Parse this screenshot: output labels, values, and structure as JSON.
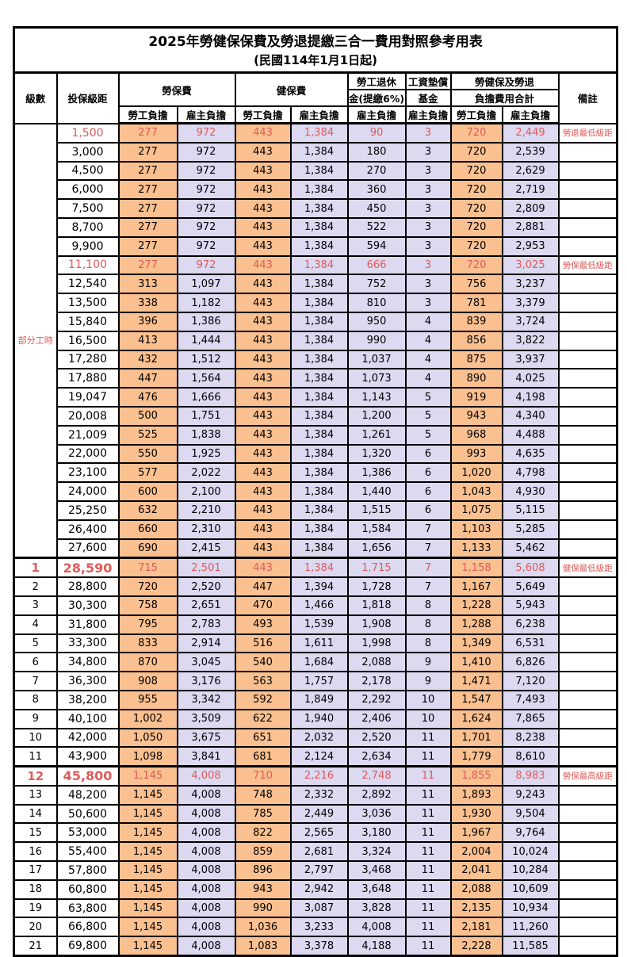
{
  "title": "2025年勞健保保費及勞退提繳三合一費用對照參考用表",
  "subtitle": "(民國114年1月1日起)",
  "colors": {
    "employee_bg": "#FAC090",
    "employer_bg": "#DCD9F1",
    "highlight_red": "#E05A5A"
  },
  "header": {
    "level": "級數",
    "bracket": "投保級距",
    "labor_ins": "勞保費",
    "health_ins": "健保費",
    "pension_line1": "勞工退休",
    "pension_line2": "金(提繳6%)",
    "wage_fund_line1": "工資墊償",
    "wage_fund_line2": "基金",
    "total_line1": "勞健保及勞退",
    "total_line2": "負擔費用合計",
    "remark": "備註",
    "employee": "勞工負擔",
    "employer": "雇主負擔"
  },
  "part_time_label": "部分工時",
  "rows": [
    {
      "level": "",
      "bracket": "1,500",
      "v": [
        "277",
        "972",
        "443",
        "1,384",
        "90",
        "3",
        "720",
        "2,449"
      ],
      "remark": "勞退最低級距",
      "red": true,
      "key": false
    },
    {
      "level": "",
      "bracket": "3,000",
      "v": [
        "277",
        "972",
        "443",
        "1,384",
        "180",
        "3",
        "720",
        "2,539"
      ],
      "remark": "",
      "red": false,
      "key": false
    },
    {
      "level": "",
      "bracket": "4,500",
      "v": [
        "277",
        "972",
        "443",
        "1,384",
        "270",
        "3",
        "720",
        "2,629"
      ],
      "remark": "",
      "red": false,
      "key": false
    },
    {
      "level": "",
      "bracket": "6,000",
      "v": [
        "277",
        "972",
        "443",
        "1,384",
        "360",
        "3",
        "720",
        "2,719"
      ],
      "remark": "",
      "red": false,
      "key": false
    },
    {
      "level": "",
      "bracket": "7,500",
      "v": [
        "277",
        "972",
        "443",
        "1,384",
        "450",
        "3",
        "720",
        "2,809"
      ],
      "remark": "",
      "red": false,
      "key": false
    },
    {
      "level": "",
      "bracket": "8,700",
      "v": [
        "277",
        "972",
        "443",
        "1,384",
        "522",
        "3",
        "720",
        "2,881"
      ],
      "remark": "",
      "red": false,
      "key": false
    },
    {
      "level": "",
      "bracket": "9,900",
      "v": [
        "277",
        "972",
        "443",
        "1,384",
        "594",
        "3",
        "720",
        "2,953"
      ],
      "remark": "",
      "red": false,
      "key": false
    },
    {
      "level": "",
      "bracket": "11,100",
      "v": [
        "277",
        "972",
        "443",
        "1,384",
        "666",
        "3",
        "720",
        "3,025"
      ],
      "remark": "勞保最低級距",
      "red": true,
      "key": false
    },
    {
      "level": "",
      "bracket": "12,540",
      "v": [
        "313",
        "1,097",
        "443",
        "1,384",
        "752",
        "3",
        "756",
        "3,237"
      ],
      "remark": "",
      "red": false,
      "key": false
    },
    {
      "level": "",
      "bracket": "13,500",
      "v": [
        "338",
        "1,182",
        "443",
        "1,384",
        "810",
        "3",
        "781",
        "3,379"
      ],
      "remark": "",
      "red": false,
      "key": false
    },
    {
      "level": "",
      "bracket": "15,840",
      "v": [
        "396",
        "1,386",
        "443",
        "1,384",
        "950",
        "4",
        "839",
        "3,724"
      ],
      "remark": "",
      "red": false,
      "key": false
    },
    {
      "level": "",
      "bracket": "16,500",
      "v": [
        "413",
        "1,444",
        "443",
        "1,384",
        "990",
        "4",
        "856",
        "3,822"
      ],
      "remark": "",
      "red": false,
      "key": false
    },
    {
      "level": "",
      "bracket": "17,280",
      "v": [
        "432",
        "1,512",
        "443",
        "1,384",
        "1,037",
        "4",
        "875",
        "3,937"
      ],
      "remark": "",
      "red": false,
      "key": false
    },
    {
      "level": "",
      "bracket": "17,880",
      "v": [
        "447",
        "1,564",
        "443",
        "1,384",
        "1,073",
        "4",
        "890",
        "4,025"
      ],
      "remark": "",
      "red": false,
      "key": false
    },
    {
      "level": "",
      "bracket": "19,047",
      "v": [
        "476",
        "1,666",
        "443",
        "1,384",
        "1,143",
        "5",
        "919",
        "4,198"
      ],
      "remark": "",
      "red": false,
      "key": false
    },
    {
      "level": "",
      "bracket": "20,008",
      "v": [
        "500",
        "1,751",
        "443",
        "1,384",
        "1,200",
        "5",
        "943",
        "4,340"
      ],
      "remark": "",
      "red": false,
      "key": false
    },
    {
      "level": "",
      "bracket": "21,009",
      "v": [
        "525",
        "1,838",
        "443",
        "1,384",
        "1,261",
        "5",
        "968",
        "4,488"
      ],
      "remark": "",
      "red": false,
      "key": false
    },
    {
      "level": "",
      "bracket": "22,000",
      "v": [
        "550",
        "1,925",
        "443",
        "1,384",
        "1,320",
        "6",
        "993",
        "4,635"
      ],
      "remark": "",
      "red": false,
      "key": false
    },
    {
      "level": "",
      "bracket": "23,100",
      "v": [
        "577",
        "2,022",
        "443",
        "1,384",
        "1,386",
        "6",
        "1,020",
        "4,798"
      ],
      "remark": "",
      "red": false,
      "key": false
    },
    {
      "level": "",
      "bracket": "24,000",
      "v": [
        "600",
        "2,100",
        "443",
        "1,384",
        "1,440",
        "6",
        "1,043",
        "4,930"
      ],
      "remark": "",
      "red": false,
      "key": false
    },
    {
      "level": "",
      "bracket": "25,250",
      "v": [
        "632",
        "2,210",
        "443",
        "1,384",
        "1,515",
        "6",
        "1,075",
        "5,115"
      ],
      "remark": "",
      "red": false,
      "key": false
    },
    {
      "level": "",
      "bracket": "26,400",
      "v": [
        "660",
        "2,310",
        "443",
        "1,384",
        "1,584",
        "7",
        "1,103",
        "5,285"
      ],
      "remark": "",
      "red": false,
      "key": false
    },
    {
      "level": "",
      "bracket": "27,600",
      "v": [
        "690",
        "2,415",
        "443",
        "1,384",
        "1,656",
        "7",
        "1,133",
        "5,462"
      ],
      "remark": "",
      "red": false,
      "key": false
    },
    {
      "level": "1",
      "bracket": "28,590",
      "v": [
        "715",
        "2,501",
        "443",
        "1,384",
        "1,715",
        "7",
        "1,158",
        "5,608"
      ],
      "remark": "健保最低級距",
      "red": true,
      "key": true
    },
    {
      "level": "2",
      "bracket": "28,800",
      "v": [
        "720",
        "2,520",
        "447",
        "1,394",
        "1,728",
        "7",
        "1,167",
        "5,649"
      ],
      "remark": "",
      "red": false,
      "key": false
    },
    {
      "level": "3",
      "bracket": "30,300",
      "v": [
        "758",
        "2,651",
        "470",
        "1,466",
        "1,818",
        "8",
        "1,228",
        "5,943"
      ],
      "remark": "",
      "red": false,
      "key": false
    },
    {
      "level": "4",
      "bracket": "31,800",
      "v": [
        "795",
        "2,783",
        "493",
        "1,539",
        "1,908",
        "8",
        "1,288",
        "6,238"
      ],
      "remark": "",
      "red": false,
      "key": false
    },
    {
      "level": "5",
      "bracket": "33,300",
      "v": [
        "833",
        "2,914",
        "516",
        "1,611",
        "1,998",
        "8",
        "1,349",
        "6,531"
      ],
      "remark": "",
      "red": false,
      "key": false
    },
    {
      "level": "6",
      "bracket": "34,800",
      "v": [
        "870",
        "3,045",
        "540",
        "1,684",
        "2,088",
        "9",
        "1,410",
        "6,826"
      ],
      "remark": "",
      "red": false,
      "key": false
    },
    {
      "level": "7",
      "bracket": "36,300",
      "v": [
        "908",
        "3,176",
        "563",
        "1,757",
        "2,178",
        "9",
        "1,471",
        "7,120"
      ],
      "remark": "",
      "red": false,
      "key": false
    },
    {
      "level": "8",
      "bracket": "38,200",
      "v": [
        "955",
        "3,342",
        "592",
        "1,849",
        "2,292",
        "10",
        "1,547",
        "7,493"
      ],
      "remark": "",
      "red": false,
      "key": false
    },
    {
      "level": "9",
      "bracket": "40,100",
      "v": [
        "1,002",
        "3,509",
        "622",
        "1,940",
        "2,406",
        "10",
        "1,624",
        "7,865"
      ],
      "remark": "",
      "red": false,
      "key": false
    },
    {
      "level": "10",
      "bracket": "42,000",
      "v": [
        "1,050",
        "3,675",
        "651",
        "2,032",
        "2,520",
        "11",
        "1,701",
        "8,238"
      ],
      "remark": "",
      "red": false,
      "key": false
    },
    {
      "level": "11",
      "bracket": "43,900",
      "v": [
        "1,098",
        "3,841",
        "681",
        "2,124",
        "2,634",
        "11",
        "1,779",
        "8,610"
      ],
      "remark": "",
      "red": false,
      "key": false
    },
    {
      "level": "12",
      "bracket": "45,800",
      "v": [
        "1,145",
        "4,008",
        "710",
        "2,216",
        "2,748",
        "11",
        "1,855",
        "8,983"
      ],
      "remark": "勞保最高級距",
      "red": true,
      "key": true
    },
    {
      "level": "13",
      "bracket": "48,200",
      "v": [
        "1,145",
        "4,008",
        "748",
        "2,332",
        "2,892",
        "11",
        "1,893",
        "9,243"
      ],
      "remark": "",
      "red": false,
      "key": false
    },
    {
      "level": "14",
      "bracket": "50,600",
      "v": [
        "1,145",
        "4,008",
        "785",
        "2,449",
        "3,036",
        "11",
        "1,930",
        "9,504"
      ],
      "remark": "",
      "red": false,
      "key": false
    },
    {
      "level": "15",
      "bracket": "53,000",
      "v": [
        "1,145",
        "4,008",
        "822",
        "2,565",
        "3,180",
        "11",
        "1,967",
        "9,764"
      ],
      "remark": "",
      "red": false,
      "key": false
    },
    {
      "level": "16",
      "bracket": "55,400",
      "v": [
        "1,145",
        "4,008",
        "859",
        "2,681",
        "3,324",
        "11",
        "2,004",
        "10,024"
      ],
      "remark": "",
      "red": false,
      "key": false
    },
    {
      "level": "17",
      "bracket": "57,800",
      "v": [
        "1,145",
        "4,008",
        "896",
        "2,797",
        "3,468",
        "11",
        "2,041",
        "10,284"
      ],
      "remark": "",
      "red": false,
      "key": false
    },
    {
      "level": "18",
      "bracket": "60,800",
      "v": [
        "1,145",
        "4,008",
        "943",
        "2,942",
        "3,648",
        "11",
        "2,088",
        "10,609"
      ],
      "remark": "",
      "red": false,
      "key": false
    },
    {
      "level": "19",
      "bracket": "63,800",
      "v": [
        "1,145",
        "4,008",
        "990",
        "3,087",
        "3,828",
        "11",
        "2,135",
        "10,934"
      ],
      "remark": "",
      "red": false,
      "key": false
    },
    {
      "level": "20",
      "bracket": "66,800",
      "v": [
        "1,145",
        "4,008",
        "1,036",
        "3,233",
        "4,008",
        "11",
        "2,181",
        "11,260"
      ],
      "remark": "",
      "red": false,
      "key": false
    },
    {
      "level": "21",
      "bracket": "69,800",
      "v": [
        "1,145",
        "4,008",
        "1,083",
        "3,378",
        "4,188",
        "11",
        "2,228",
        "11,585"
      ],
      "remark": "",
      "red": false,
      "key": false
    }
  ]
}
